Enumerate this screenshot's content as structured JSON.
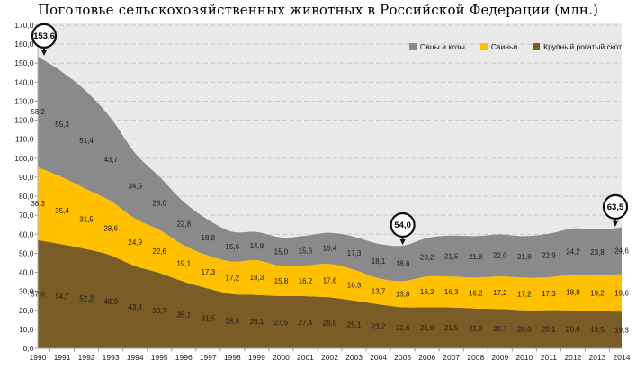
{
  "title": "Поголовье сельскохозяйственных животных в Российской Федерации (млн.)",
  "colors": {
    "plot_bg": "#e9e9e9",
    "gridline": "#c5c5c5",
    "axis_line": "#b5b5b5",
    "tick": "#9a9a9a",
    "axis_text": "#1a1a1a",
    "data_label_text": "#1c1c1c",
    "annotation_stroke": "#111111",
    "annotation_fill": "#ffffff"
  },
  "legend": {
    "items": [
      {
        "label": "Овцы и козы",
        "color": "#8a8a8a"
      },
      {
        "label": "Свиньи",
        "color": "#ffc000"
      },
      {
        "label": "Крупный рогатый скот",
        "color": "#7a5c26"
      }
    ]
  },
  "chart_data": {
    "type": "area",
    "stacked": true,
    "title": "Поголовье сельскохозяйственных животных в Российской Федерации (млн.)",
    "x": [
      1990,
      1991,
      1992,
      1993,
      1994,
      1995,
      1996,
      1997,
      1998,
      1999,
      2000,
      2001,
      2002,
      2003,
      2004,
      2005,
      2006,
      2007,
      2008,
      2009,
      2010,
      2011,
      2012,
      2013,
      2014
    ],
    "series": [
      {
        "name": "Крупный рогатый скот",
        "color": "#7a5c26",
        "values": [
          57.0,
          54.7,
          52.2,
          48.9,
          43.3,
          39.7,
          35.1,
          31.5,
          28.5,
          28.1,
          27.5,
          27.4,
          26.8,
          25.1,
          23.2,
          21.6,
          21.6,
          21.5,
          21.0,
          20.7,
          20.0,
          20.1,
          20.0,
          19.5,
          19.3
        ]
      },
      {
        "name": "Свиньи",
        "color": "#ffc000",
        "values": [
          38.3,
          35.4,
          31.5,
          28.6,
          24.9,
          22.6,
          19.1,
          17.3,
          17.2,
          18.3,
          15.8,
          16.2,
          17.6,
          16.3,
          13.7,
          13.8,
          16.2,
          16.3,
          16.2,
          17.2,
          17.2,
          17.3,
          18.8,
          19.2,
          19.6
        ]
      },
      {
        "name": "Овцы и козы",
        "color": "#8a8a8a",
        "values": [
          58.2,
          55.3,
          51.4,
          43.7,
          34.5,
          28.0,
          22.8,
          18.8,
          15.6,
          14.8,
          15.0,
          15.6,
          16.4,
          17.3,
          18.1,
          18.6,
          20.2,
          21.5,
          21.8,
          22.0,
          21.8,
          22.9,
          24.2,
          23.8,
          24.6
        ]
      }
    ],
    "ylim": [
      0,
      170
    ],
    "ytick_step": 10,
    "ytick_format": "comma-decimal-one-place",
    "grid": "horizontal-dashed",
    "legend_position": "top-right-inside",
    "annotations": [
      {
        "year": 1990,
        "label": "153,6",
        "meaning": "total 1990"
      },
      {
        "year": 2005,
        "label": "54,0",
        "meaning": "total 2005"
      },
      {
        "year": 2014,
        "label": "63,5",
        "meaning": "total 2014"
      }
    ]
  }
}
